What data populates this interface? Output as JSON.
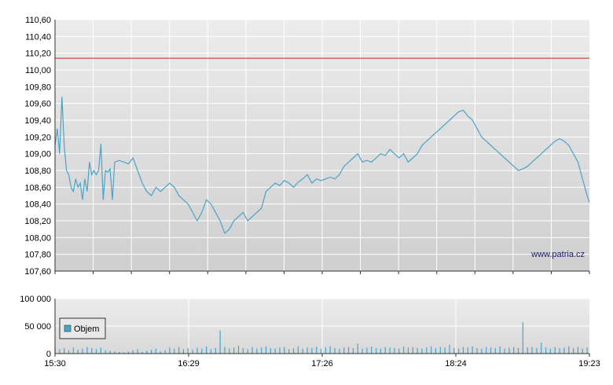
{
  "watermark": "www.patria.cz",
  "colors": {
    "price_line": "#4aa3c8",
    "reference_line": "#cc2222",
    "volume_bar": "#4aa3c8",
    "axis": "#333333",
    "grid": "#ffffff"
  },
  "chart_data": [
    {
      "type": "line",
      "x_ticks": [
        "15:30",
        "16:29",
        "17:26",
        "18:24",
        "19:23"
      ],
      "y_ticks": [
        "107,60",
        "107,80",
        "108,00",
        "108,20",
        "108,40",
        "108,60",
        "108,80",
        "109,00",
        "109,20",
        "109,40",
        "109,60",
        "109,80",
        "110,00",
        "110,20",
        "110,40",
        "110,60"
      ],
      "ylim": [
        107.6,
        110.6
      ],
      "xlim": [
        0,
        233
      ],
      "reference_value": 110.14,
      "grid": true,
      "series": [
        {
          "x": [
            0,
            1,
            2,
            3,
            4,
            5,
            6,
            7,
            8,
            9,
            10,
            11,
            12,
            13,
            14,
            15,
            16,
            17,
            18,
            19,
            20,
            21,
            22,
            23,
            24,
            25,
            26,
            28,
            30,
            32,
            34,
            36,
            38,
            40,
            42,
            44,
            46,
            48,
            50,
            52,
            54,
            56,
            58,
            60,
            62,
            64,
            66,
            68,
            70,
            72,
            74,
            76,
            78,
            80,
            82,
            84,
            86,
            88,
            90,
            92,
            94,
            96,
            98,
            100,
            102,
            104,
            106,
            108,
            110,
            112,
            114,
            116,
            118,
            120,
            122,
            124,
            126,
            128,
            130,
            132,
            134,
            136,
            138,
            140,
            142,
            144,
            146,
            148,
            150,
            152,
            154,
            156,
            158,
            160,
            162,
            164,
            166,
            168,
            170,
            172,
            174,
            176,
            178,
            180,
            182,
            184,
            186,
            188,
            190,
            192,
            194,
            196,
            198,
            200,
            202,
            204,
            206,
            208,
            210,
            212,
            214,
            216,
            218,
            220,
            222,
            224,
            226,
            228,
            229,
            230,
            231,
            232,
            233
          ],
          "values": [
            109.1,
            109.3,
            109.0,
            109.68,
            109.1,
            108.8,
            108.75,
            108.6,
            108.55,
            108.7,
            108.6,
            108.65,
            108.45,
            108.7,
            108.55,
            108.9,
            108.75,
            108.8,
            108.75,
            108.8,
            109.12,
            108.45,
            108.8,
            108.78,
            108.82,
            108.45,
            108.9,
            108.92,
            108.9,
            108.88,
            108.95,
            108.8,
            108.65,
            108.55,
            108.5,
            108.6,
            108.55,
            108.6,
            108.65,
            108.6,
            108.5,
            108.45,
            108.4,
            108.3,
            108.2,
            108.3,
            108.45,
            108.4,
            108.3,
            108.2,
            108.05,
            108.1,
            108.2,
            108.25,
            108.3,
            108.2,
            108.25,
            108.3,
            108.35,
            108.55,
            108.6,
            108.65,
            108.62,
            108.68,
            108.65,
            108.6,
            108.66,
            108.7,
            108.75,
            108.65,
            108.7,
            108.68,
            108.7,
            108.72,
            108.7,
            108.75,
            108.85,
            108.9,
            108.95,
            109.0,
            108.9,
            108.92,
            108.9,
            108.95,
            109.0,
            108.98,
            109.05,
            109.0,
            108.95,
            109.0,
            108.9,
            108.95,
            109.0,
            109.1,
            109.15,
            109.2,
            109.25,
            109.3,
            109.35,
            109.4,
            109.45,
            109.5,
            109.52,
            109.45,
            109.4,
            109.3,
            109.2,
            109.15,
            109.1,
            109.05,
            109.0,
            108.95,
            108.9,
            108.85,
            108.8,
            108.82,
            108.85,
            108.9,
            108.95,
            109.0,
            109.05,
            109.1,
            109.15,
            109.18,
            109.15,
            109.1,
            109.0,
            108.9,
            108.8,
            108.7,
            108.6,
            108.5,
            108.42
          ]
        }
      ]
    },
    {
      "type": "bar",
      "x_ticks": [
        "15:30",
        "16:29",
        "17:26",
        "18:24",
        "19:23"
      ],
      "y_ticks": [
        "0",
        "50 000",
        "100 000"
      ],
      "ylim": [
        0,
        100000
      ],
      "xlim": [
        0,
        233
      ],
      "grid": true,
      "legend": "Objem",
      "legend_position": "left",
      "series": [
        {
          "name": "Objem",
          "x": [
            0,
            2,
            4,
            6,
            8,
            10,
            12,
            14,
            16,
            18,
            20,
            22,
            24,
            26,
            28,
            30,
            32,
            34,
            36,
            38,
            40,
            42,
            44,
            46,
            48,
            50,
            52,
            54,
            56,
            58,
            60,
            62,
            64,
            66,
            68,
            70,
            72,
            74,
            76,
            78,
            80,
            82,
            84,
            86,
            88,
            90,
            92,
            94,
            96,
            98,
            100,
            102,
            104,
            106,
            108,
            110,
            112,
            114,
            116,
            118,
            120,
            122,
            124,
            126,
            128,
            130,
            132,
            134,
            136,
            138,
            140,
            142,
            144,
            146,
            148,
            150,
            152,
            154,
            156,
            158,
            160,
            162,
            164,
            166,
            168,
            170,
            172,
            174,
            176,
            178,
            180,
            182,
            184,
            186,
            188,
            190,
            192,
            194,
            196,
            198,
            200,
            202,
            204,
            206,
            208,
            210,
            212,
            214,
            216,
            218,
            220,
            222,
            224,
            226,
            228,
            230,
            232
          ],
          "values": [
            12000,
            8000,
            10000,
            6000,
            11000,
            7000,
            9000,
            12000,
            10000,
            8000,
            11000,
            6000,
            5000,
            4000,
            3000,
            2000,
            4000,
            6000,
            8000,
            3000,
            5000,
            7000,
            9000,
            4000,
            6000,
            11000,
            9000,
            12000,
            8000,
            10000,
            7000,
            11000,
            9000,
            13000,
            8000,
            10000,
            42000,
            12000,
            9000,
            11000,
            14000,
            10000,
            8000,
            12000,
            9000,
            11000,
            13000,
            10000,
            9000,
            11000,
            12000,
            8000,
            10000,
            13000,
            9000,
            11000,
            10000,
            12000,
            9000,
            11000,
            13000,
            10000,
            9000,
            11000,
            12000,
            10000,
            18000,
            9000,
            11000,
            13000,
            10000,
            9000,
            12000,
            11000,
            10000,
            9000,
            13000,
            11000,
            12000,
            10000,
            9000,
            11000,
            13000,
            10000,
            12000,
            11000,
            16000,
            10000,
            9000,
            12000,
            11000,
            13000,
            10000,
            9000,
            12000,
            11000,
            10000,
            13000,
            9000,
            11000,
            12000,
            10000,
            57000,
            11000,
            12000,
            10000,
            20000,
            11000,
            9000,
            12000,
            10000,
            11000,
            13000,
            10000,
            12000,
            9000,
            11000
          ]
        }
      ]
    }
  ]
}
